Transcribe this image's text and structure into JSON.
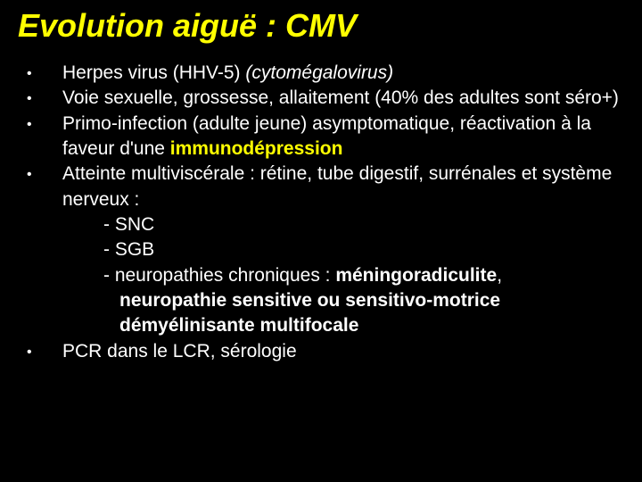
{
  "title": "Evolution aiguë : CMV",
  "bullets": {
    "b1_a": "Herpes virus (HHV-5) ",
    "b1_b": "(cytomégalovirus)",
    "b2": "Voie sexuelle, grossesse, allaitement (40% des adultes sont séro+)",
    "b3_a": "Primo-infection (adulte jeune) asymptomatique, réactivation à la faveur d'une ",
    "b3_b": "immunodépression",
    "b4": "Atteinte multiviscérale : rétine, tube digestif, surrénales et système nerveux :",
    "b4_s1": "- SNC",
    "b4_s2": "- SGB",
    "b4_s3_a": "- neuropathies chroniques : ",
    "b4_s3_b": "méningoradiculite",
    "b4_s3_c": ", ",
    "b4_s3_d": "neuropathie sensitive ou sensitivo-motrice démyélinisante multifocale",
    "b5": "PCR dans le LCR, sérologie"
  },
  "marker": "•"
}
